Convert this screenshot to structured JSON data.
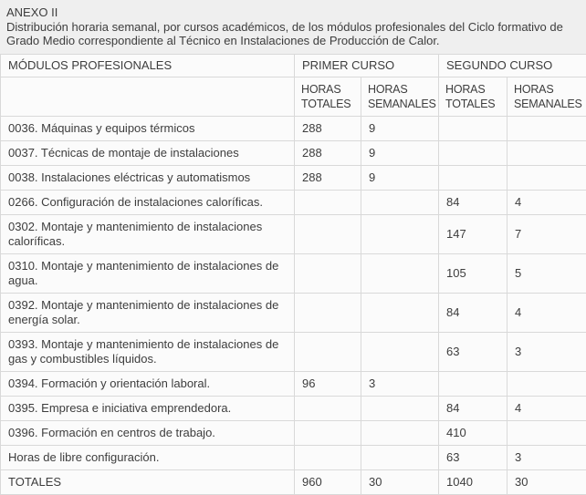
{
  "page": {
    "title": "ANEXO II",
    "description": "Distribución horaria semanal, por cursos académicos, de los módulos profesionales del Ciclo formativo de Grado Medio correspondiente al Técnico en Instalaciones de Producción de Calor."
  },
  "colors": {
    "page_bg": "#efefef",
    "cell_bg": "#fbfbfb",
    "border": "#d9d9d9",
    "text": "#3d3d3d"
  },
  "table": {
    "header": {
      "col_modules": "MÓDULOS PROFESIONALES",
      "group_first_course": "PRIMER CURSO",
      "group_second_course": "SEGUNDO CURSO",
      "sub_total_first": "HORAS TOTALES",
      "sub_weekly_first": "HORAS SEMANALES",
      "sub_total_second": "HORAS TOTALES",
      "sub_weekly_second": "HORAS SEMANALES"
    },
    "rows": [
      {
        "module": "0036. Máquinas y equipos térmicos",
        "first_total": "288",
        "first_weekly": "9",
        "second_total": "",
        "second_weekly": ""
      },
      {
        "module": "0037. Técnicas de montaje de instalaciones",
        "first_total": "288",
        "first_weekly": "9",
        "second_total": "",
        "second_weekly": ""
      },
      {
        "module": "0038. Instalaciones eléctricas y automatismos",
        "first_total": "288",
        "first_weekly": "9",
        "second_total": "",
        "second_weekly": ""
      },
      {
        "module": "0266. Configuración de instalaciones caloríficas.",
        "first_total": "",
        "first_weekly": "",
        "second_total": "84",
        "second_weekly": "4"
      },
      {
        "module": "0302. Montaje y mantenimiento de instalaciones caloríficas.",
        "first_total": "",
        "first_weekly": "",
        "second_total": "147",
        "second_weekly": "7"
      },
      {
        "module": "0310. Montaje y mantenimiento de instalaciones de agua.",
        "first_total": "",
        "first_weekly": "",
        "second_total": "105",
        "second_weekly": "5"
      },
      {
        "module": "0392. Montaje y mantenimiento de instalaciones de energía solar.",
        "first_total": "",
        "first_weekly": "",
        "second_total": "84",
        "second_weekly": "4"
      },
      {
        "module": "0393. Montaje y mantenimiento de instalaciones de gas y combustibles líquidos.",
        "first_total": "",
        "first_weekly": "",
        "second_total": "63",
        "second_weekly": "3"
      },
      {
        "module": "0394. Formación y orientación laboral.",
        "first_total": "96",
        "first_weekly": "3",
        "second_total": "",
        "second_weekly": ""
      },
      {
        "module": "0395. Empresa e iniciativa emprendedora.",
        "first_total": "",
        "first_weekly": "",
        "second_total": "84",
        "second_weekly": "4"
      },
      {
        "module": "0396. Formación en centros de trabajo.",
        "first_total": "",
        "first_weekly": "",
        "second_total": "410",
        "second_weekly": ""
      },
      {
        "module": "Horas de libre configuración.",
        "first_total": "",
        "first_weekly": "",
        "second_total": "63",
        "second_weekly": "3"
      },
      {
        "module": "TOTALES",
        "first_total": "960",
        "first_weekly": "30",
        "second_total": "1040",
        "second_weekly": "30"
      }
    ]
  }
}
